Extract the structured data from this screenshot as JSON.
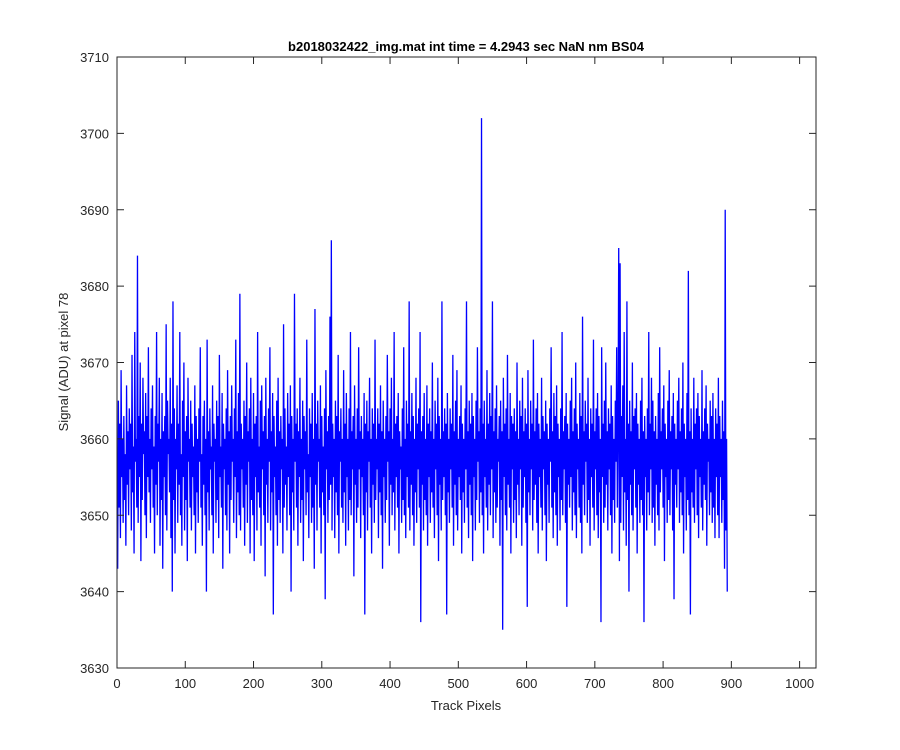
{
  "chart_data": {
    "type": "line",
    "title": "b2018032422_img.mat int time = 4.2943 sec  NaN nm BS04",
    "xlabel": "Track Pixels",
    "ylabel": "Signal (ADU) at pixel 78",
    "xlim": [
      0,
      1024
    ],
    "ylim": [
      3630,
      3710
    ],
    "xticks": [
      "0",
      "100",
      "200",
      "300",
      "400",
      "500",
      "600",
      "700",
      "800",
      "900",
      "1000"
    ],
    "yticks": [
      "3630",
      "3640",
      "3650",
      "3660",
      "3670",
      "3680",
      "3690",
      "3700",
      "3710"
    ],
    "grid": false,
    "legend": "none",
    "line_color": "#0000ff",
    "box": true,
    "series": [
      {
        "x_start": 1,
        "x_step": 1,
        "values": [
          3643,
          3665,
          3651,
          3662,
          3647,
          3669,
          3655,
          3660,
          3649,
          3663,
          3652,
          3658,
          3646,
          3667,
          3654,
          3661,
          3650,
          3664,
          3656,
          3662,
          3648,
          3671,
          3653,
          3659,
          3645,
          3674,
          3657,
          3660,
          3651,
          3684,
          3649,
          3663,
          3655,
          3670,
          3644,
          3662,
          3652,
          3668,
          3658,
          3661,
          3650,
          3666,
          3647,
          3663,
          3655,
          3672,
          3653,
          3660,
          3649,
          3664,
          3656,
          3667,
          3651,
          3659,
          3645,
          3663,
          3654,
          3674,
          3650,
          3662,
          3657,
          3668,
          3646,
          3660,
          3652,
          3666,
          3643,
          3661,
          3655,
          3663,
          3650,
          3675,
          3648,
          3665,
          3658,
          3660,
          3653,
          3668,
          3647,
          3662,
          3640,
          3678,
          3652,
          3664,
          3645,
          3660,
          3656,
          3667,
          3649,
          3662,
          3654,
          3674,
          3650,
          3658,
          3646,
          3665,
          3655,
          3670,
          3648,
          3661,
          3652,
          3663,
          3644,
          3668,
          3657,
          3660,
          3651,
          3665,
          3648,
          3662,
          3655,
          3659,
          3650,
          3667,
          3645,
          3663,
          3653,
          3660,
          3649,
          3664,
          3657,
          3672,
          3651,
          3658,
          3646,
          3663,
          3654,
          3665,
          3650,
          3660,
          3640,
          3673,
          3653,
          3661,
          3648,
          3664,
          3656,
          3659,
          3650,
          3667,
          3645,
          3662,
          3657,
          3660,
          3649,
          3665,
          3652,
          3663,
          3647,
          3671,
          3655,
          3659,
          3651,
          3666,
          3643,
          3662,
          3656,
          3660,
          3650,
          3664,
          3648,
          3669,
          3654,
          3661,
          3645,
          3663,
          3652,
          3667,
          3657,
          3660,
          3649,
          3664,
          3655,
          3673,
          3647,
          3661,
          3653,
          3666,
          3650,
          3679,
          3648,
          3662,
          3656,
          3660,
          3651,
          3665,
          3646,
          3663,
          3654,
          3670,
          3649,
          3661,
          3657,
          3664,
          3645,
          3668,
          3652,
          3660,
          3650,
          3666,
          3644,
          3662,
          3655,
          3663,
          3648,
          3674,
          3653,
          3659,
          3651,
          3665,
          3646,
          3667,
          3656,
          3661,
          3650,
          3663,
          3642,
          3668,
          3654,
          3660,
          3649,
          3664,
          3657,
          3672,
          3648,
          3661,
          3653,
          3666,
          3637,
          3663,
          3655,
          3659,
          3650,
          3665,
          3646,
          3668,
          3652,
          3661,
          3649,
          3663,
          3656,
          3660,
          3645,
          3675,
          3651,
          3664,
          3654,
          3659,
          3648,
          3666,
          3655,
          3662,
          3650,
          3667,
          3640,
          3663,
          3653,
          3660,
          3648,
          3679,
          3657,
          3662,
          3651,
          3664,
          3646,
          3661,
          3655,
          3668,
          3649,
          3660,
          3652,
          3665,
          3644,
          3663,
          3656,
          3661,
          3650,
          3673,
          3653,
          3658,
          3647,
          3664,
          3655,
          3662,
          3649,
          3666,
          3651,
          3660,
          3643,
          3677,
          3654,
          3662,
          3648,
          3665,
          3657,
          3660,
          3651,
          3667,
          3645,
          3663,
          3653,
          3659,
          3650,
          3664,
          3639,
          3669,
          3656,
          3661,
          3649,
          3663,
          3652,
          3676,
          3654,
          3686,
          3648,
          3662,
          3655,
          3660,
          3647,
          3665,
          3653,
          3663,
          3650,
          3671,
          3645,
          3661,
          3657,
          3664,
          3651,
          3660,
          3649,
          3669,
          3653,
          3662,
          3646,
          3666,
          3655,
          3660,
          3648,
          3664,
          3652,
          3674,
          3650,
          3661,
          3656,
          3663,
          3642,
          3667,
          3654,
          3660,
          3649,
          3664,
          3651,
          3672,
          3656,
          3661,
          3647,
          3663,
          3655,
          3660,
          3650,
          3666,
          3637,
          3662,
          3653,
          3665,
          3648,
          3661,
          3657,
          3668,
          3651,
          3660,
          3645,
          3664,
          3654,
          3662,
          3649,
          3673,
          3652,
          3660,
          3656,
          3664,
          3647,
          3662,
          3653,
          3667,
          3650,
          3661,
          3643,
          3665,
          3655,
          3660,
          3649,
          3663,
          3652,
          3671,
          3657,
          3661,
          3646,
          3664,
          3654,
          3668,
          3650,
          3660,
          3653,
          3674,
          3648,
          3662,
          3655,
          3663,
          3651,
          3666,
          3645,
          3661,
          3656,
          3659,
          3649,
          3664,
          3652,
          3672,
          3650,
          3660,
          3647,
          3665,
          3655,
          3662,
          3651,
          3678,
          3648,
          3661,
          3654,
          3666,
          3650,
          3663,
          3646,
          3660,
          3653,
          3668,
          3649,
          3662,
          3656,
          3664,
          3651,
          3674,
          3636,
          3661,
          3654,
          3663,
          3648,
          3666,
          3652,
          3660,
          3650,
          3667,
          3646,
          3662,
          3655,
          3664,
          3649,
          3661,
          3653,
          3670,
          3651,
          3660,
          3647,
          3665,
          3656,
          3662,
          3650,
          3668,
          3644,
          3663,
          3654,
          3660,
          3648,
          3678,
          3652,
          3661,
          3655,
          3664,
          3650,
          3662,
          3637,
          3666,
          3653,
          3660,
          3649,
          3664,
          3656,
          3662,
          3651,
          3671,
          3646,
          3661,
          3654,
          3665,
          3650,
          3669,
          3648,
          3660,
          3655,
          3663,
          3652,
          3667,
          3645,
          3662,
          3653,
          3660,
          3649,
          3664,
          3656,
          3678,
          3651,
          3661,
          3647,
          3665,
          3654,
          3662,
          3650,
          3666,
          3644,
          3663,
          3655,
          3660,
          3648,
          3665,
          3652,
          3672,
          3657,
          3661,
          3649,
          3664,
          3653,
          3702,
          3650,
          3662,
          3645,
          3665,
          3655,
          3660,
          3651,
          3669,
          3648,
          3662,
          3654,
          3666,
          3650,
          3663,
          3656,
          3678,
          3647,
          3661,
          3653,
          3664,
          3649,
          3667,
          3651,
          3660,
          3657,
          3663,
          3646,
          3665,
          3652,
          3661,
          3635,
          3668,
          3655,
          3662,
          3650,
          3664,
          3648,
          3671,
          3654,
          3660,
          3651,
          3666,
          3645,
          3663,
          3656,
          3662,
          3649,
          3664,
          3652,
          3661,
          3647,
          3670,
          3654,
          3660,
          3650,
          3665,
          3656,
          3663,
          3646,
          3668,
          3651,
          3661,
          3655,
          3664,
          3649,
          3662,
          3638,
          3669,
          3653,
          3660,
          3650,
          3665,
          3656,
          3662,
          3648,
          3673,
          3652,
          3661,
          3654,
          3664,
          3649,
          3666,
          3645,
          3662,
          3655,
          3660,
          3651,
          3668,
          3648,
          3663,
          3656,
          3661,
          3650,
          3665,
          3644,
          3662,
          3654,
          3660,
          3649,
          3664,
          3657,
          3672,
          3651,
          3661,
          3647,
          3666,
          3653,
          3663,
          3650,
          3667,
          3646,
          3662,
          3655,
          3660,
          3648,
          3664,
          3652,
          3674,
          3650,
          3661,
          3656,
          3663,
          3649,
          3666,
          3638,
          3662,
          3654,
          3660,
          3651,
          3665,
          3655,
          3668,
          3648,
          3661,
          3653,
          3664,
          3650,
          3670,
          3647,
          3662,
          3656,
          3660,
          3651,
          3666,
          3649,
          3663,
          3645,
          3676,
          3654,
          3661,
          3650,
          3665,
          3657,
          3662,
          3649,
          3668,
          3652,
          3660,
          3646,
          3664,
          3655,
          3662,
          3651,
          3673,
          3648,
          3661,
          3656,
          3664,
          3650,
          3666,
          3647,
          3663,
          3653,
          3660,
          3636,
          3672,
          3655,
          3662,
          3649,
          3665,
          3651,
          3670,
          3654,
          3661,
          3648,
          3664,
          3656,
          3662,
          3650,
          3667,
          3645,
          3663,
          3652,
          3660,
          3649,
          3665,
          3657,
          3672,
          3651,
          3661,
          3685,
          3644,
          3683,
          3649,
          3663,
          3655,
          3667,
          3648,
          3674,
          3653,
          3660,
          3646,
          3678,
          3652,
          3662,
          3640,
          3665,
          3654,
          3661,
          3650,
          3670,
          3648,
          3663,
          3656,
          3664,
          3651,
          3666,
          3645,
          3662,
          3654,
          3660,
          3649,
          3665,
          3652,
          3668,
          3650,
          3661,
          3636,
          3663,
          3655,
          3660,
          3648,
          3664,
          3653,
          3674,
          3650,
          3662,
          3656,
          3668,
          3649,
          3665,
          3651,
          3661,
          3646,
          3663,
          3654,
          3660,
          3650,
          3666,
          3648,
          3672,
          3653,
          3661,
          3656,
          3664,
          3651,
          3667,
          3644,
          3662,
          3655,
          3660,
          3649,
          3665,
          3652,
          3669,
          3650,
          3661,
          3656,
          3663,
          3648,
          3666,
          3639,
          3662,
          3654,
          3660,
          3651,
          3665,
          3656,
          3668,
          3649,
          3661,
          3653,
          3664,
          3650,
          3670,
          3645,
          3662,
          3655,
          3660,
          3648,
          3666,
          3652,
          3682,
          3650,
          3661,
          3637,
          3664,
          3653,
          3660,
          3651,
          3668,
          3649,
          3662,
          3656,
          3664,
          3650,
          3666,
          3647,
          3663,
          3655,
          3660,
          3651,
          3669,
          3648,
          3661,
          3654,
          3664,
          3652,
          3667,
          3646,
          3662,
          3657,
          3660,
          3650,
          3665,
          3653,
          3663,
          3649,
          3666,
          3651,
          3660,
          3647,
          3664,
          3655,
          3662,
          3650,
          3668,
          3647,
          3663,
          3655,
          3660,
          3649,
          3665,
          3652,
          3661,
          3643,
          3690,
          3648,
          3660,
          3640
        ]
      }
    ]
  }
}
